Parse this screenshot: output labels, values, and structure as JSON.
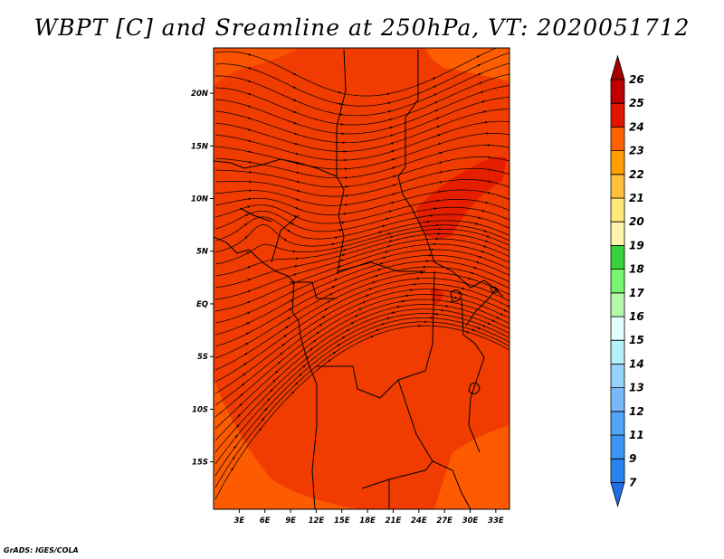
{
  "title": "WBPT [C] and Sreamline at 250hPa, VT: 2020051712",
  "credit": "GrADS: IGES/COLA",
  "map": {
    "lat_labels": [
      "20N",
      "15N",
      "10N",
      "5N",
      "EQ",
      "5S",
      "10S",
      "15S"
    ],
    "lon_labels": [
      "3E",
      "6E",
      "9E",
      "12E",
      "15E",
      "18E",
      "21E",
      "24E",
      "27E",
      "30E",
      "33E"
    ],
    "lat_range": [
      -19.5,
      24.3
    ],
    "lon_range": [
      0,
      34.6
    ],
    "background_color": "#f03c00"
  },
  "colorbar": {
    "levels": [
      "7",
      "9",
      "11",
      "12",
      "13",
      "14",
      "15",
      "16",
      "17",
      "18",
      "19",
      "20",
      "21",
      "22",
      "23",
      "24",
      "25",
      "26"
    ],
    "colors": [
      "#1e6ee6",
      "#2882f0",
      "#3c96f5",
      "#50a5f5",
      "#78b9fa",
      "#96d2fa",
      "#b4f0fa",
      "#e1ffff",
      "#b4faaa",
      "#78f573",
      "#37d23c",
      "#fff5aa",
      "#ffe878",
      "#ffc03c",
      "#ffa000",
      "#ff6000",
      "#e11400",
      "#c00000",
      "#a50000"
    ]
  }
}
